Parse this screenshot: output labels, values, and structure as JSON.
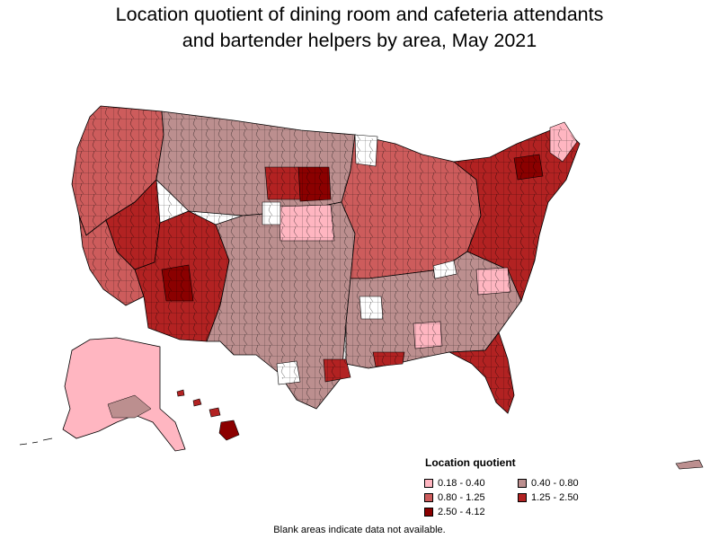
{
  "title": {
    "line1": "Location quotient of dining room and cafeteria attendants",
    "line2": "and bartender helpers by area, May 2021"
  },
  "legend": {
    "title": "Location quotient",
    "items": [
      {
        "label": "0.18 - 0.40",
        "color": "#ffb6c1"
      },
      {
        "label": "0.40 - 0.80",
        "color": "#bc8f8f"
      },
      {
        "label": "0.80 - 1.25",
        "color": "#cd5c5c"
      },
      {
        "label": "1.25 - 2.50",
        "color": "#b22222"
      },
      {
        "label": "2.50 - 4.12",
        "color": "#8b0000"
      }
    ]
  },
  "footnote": "Blank areas indicate data not available.",
  "colors": {
    "c1": "#ffb6c1",
    "c2": "#bc8f8f",
    "c3": "#cd5c5c",
    "c4": "#b22222",
    "c5": "#8b0000",
    "na": "#ffffff",
    "border": "#000000"
  }
}
